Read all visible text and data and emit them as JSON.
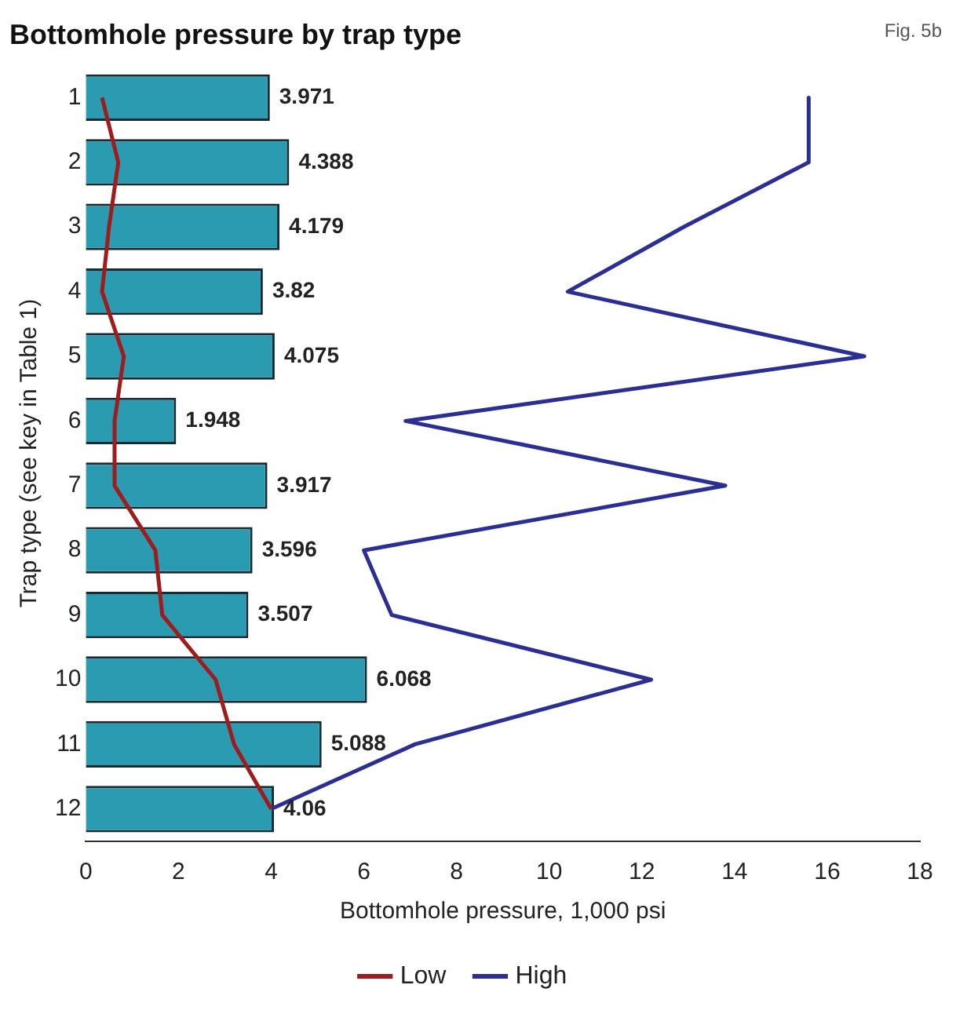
{
  "chart_data": {
    "type": "bar",
    "orientation": "horizontal",
    "title": "Bottomhole pressure by trap type",
    "xlabel": "Bottomhole pressure, 1,000 psi",
    "ylabel": "Trap type (see key in Table 1)",
    "annotations": [
      "Fig. 5b"
    ],
    "categories": [
      "1",
      "2",
      "3",
      "4",
      "5",
      "6",
      "7",
      "8",
      "9",
      "10",
      "11",
      "12"
    ],
    "series": [
      {
        "color": "#2a9bb0",
        "values": [
          3.971,
          4.388,
          4.179,
          3.82,
          4.075,
          1.948,
          3.917,
          3.596,
          3.507,
          6.068,
          5.088,
          4.06
        ],
        "value_labels": [
          "3.971",
          "4.388",
          "4.179",
          "3.82",
          "4.075",
          "1.948",
          "3.917",
          "3.596",
          "3.507",
          "6.068",
          "5.088",
          "4.06"
        ]
      },
      {
        "type": "line",
        "name": "Low",
        "color": "#a01c1c",
        "values": [
          0.35,
          0.7,
          0.5,
          0.35,
          0.82,
          0.62,
          0.62,
          1.5,
          1.65,
          2.8,
          3.2,
          4.0
        ]
      },
      {
        "type": "line",
        "name": "High",
        "color": "#2b2f94",
        "values": [
          15.6,
          15.6,
          12.9,
          10.4,
          16.8,
          6.9,
          13.8,
          6.0,
          6.6,
          12.2,
          7.1,
          4.0
        ]
      }
    ],
    "xlim": [
      0,
      18
    ],
    "xticks": [
      0,
      2,
      4,
      6,
      8,
      10,
      12,
      14,
      16,
      18
    ],
    "legend": "bottom",
    "marker": "none",
    "line_style": "solid",
    "grid": false
  }
}
